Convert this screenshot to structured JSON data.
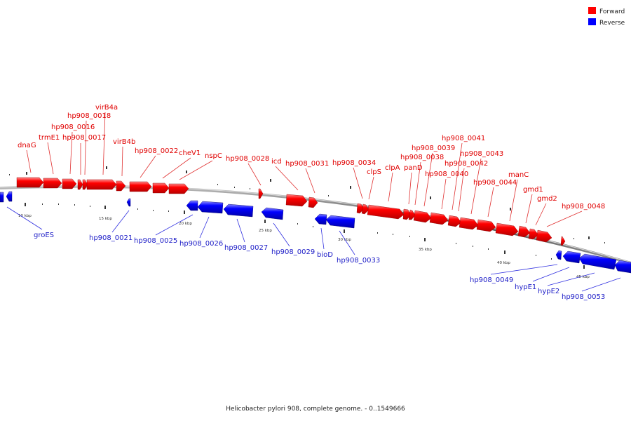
{
  "legend": {
    "forward": {
      "label": "Forward",
      "color": "#ff0000"
    },
    "reverse": {
      "label": "Reverse",
      "color": "#0000ff"
    }
  },
  "caption": "Helicobacter pylori 908, complete genome. - 0..1549666",
  "ticks": [
    "10 kbp",
    "15 kbp",
    "20 kbp",
    "25 kbp",
    "30 kbp",
    "35 kbp",
    "40 kbp",
    "45 kbp"
  ],
  "forward_genes": [
    "dnaG",
    "trmE1",
    "hp908_0016",
    "hp908_0017",
    "hp908_0018",
    "virB4a",
    "virB4b",
    "hp908_0022",
    "cheV1",
    "nspC",
    "hp908_0028",
    "icd",
    "hp908_0031",
    "hp908_0034",
    "clpS",
    "clpA",
    "panD",
    "hp908_0038",
    "hp908_0039",
    "hp908_0040",
    "hp908_0041",
    "hp908_0042",
    "hp908_0043",
    "hp908_0044",
    "manC",
    "gmd1",
    "gmd2",
    "hp908_0048"
  ],
  "reverse_genes": [
    "groES",
    "hp908_0021",
    "hp908_0025",
    "hp908_0026",
    "hp908_0027",
    "hp908_0029",
    "bioD",
    "hp908_0033",
    "hp908_0049",
    "hypE1",
    "hypE2",
    "hp908_0053"
  ]
}
